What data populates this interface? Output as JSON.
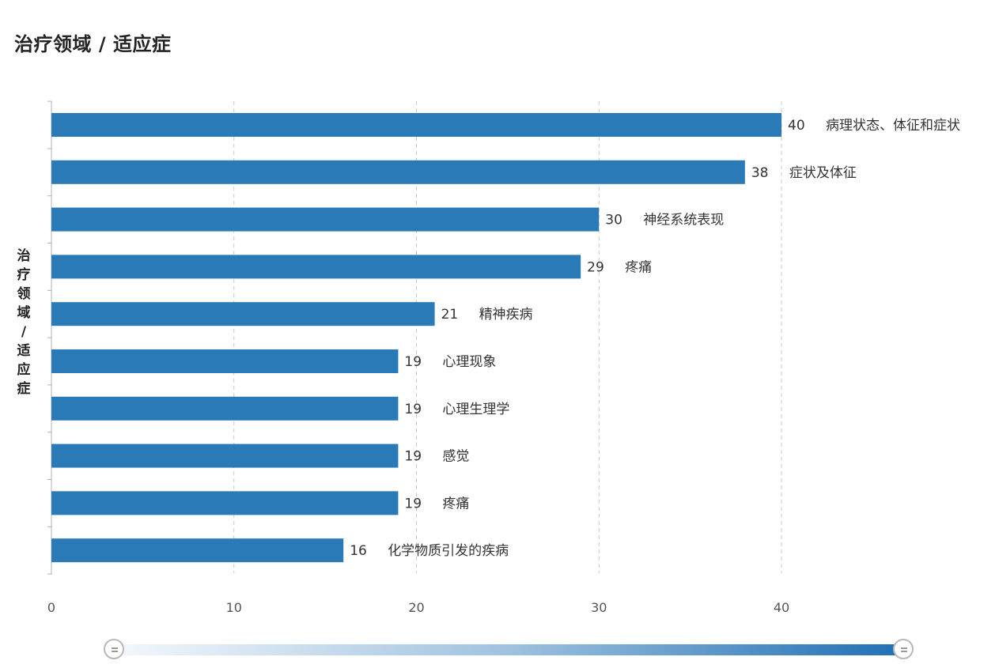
{
  "chart_data": {
    "type": "bar",
    "orientation": "horizontal",
    "title": "治疗领域 / 适应症",
    "ylabel": "治疗领域 / 适应症",
    "xlabel": "",
    "xlim": [
      0,
      40
    ],
    "xticks": [
      0,
      10,
      20,
      30,
      40
    ],
    "grid": "vertical-dashed",
    "categories": [
      "病理状态、体征和症状",
      "症状及体征",
      "神经系统表现",
      "疼痛",
      "精神疾病",
      "心理现象",
      "心理生理学",
      "感觉",
      "疼痛",
      "化学物质引发的疾病"
    ],
    "values": [
      40,
      38,
      30,
      29,
      21,
      19,
      19,
      19,
      19,
      16
    ],
    "bar_color": "#2a7ab8"
  },
  "slider": {
    "handle_color": "#b8b8b8",
    "track_end_color": "#1f6fb5"
  }
}
